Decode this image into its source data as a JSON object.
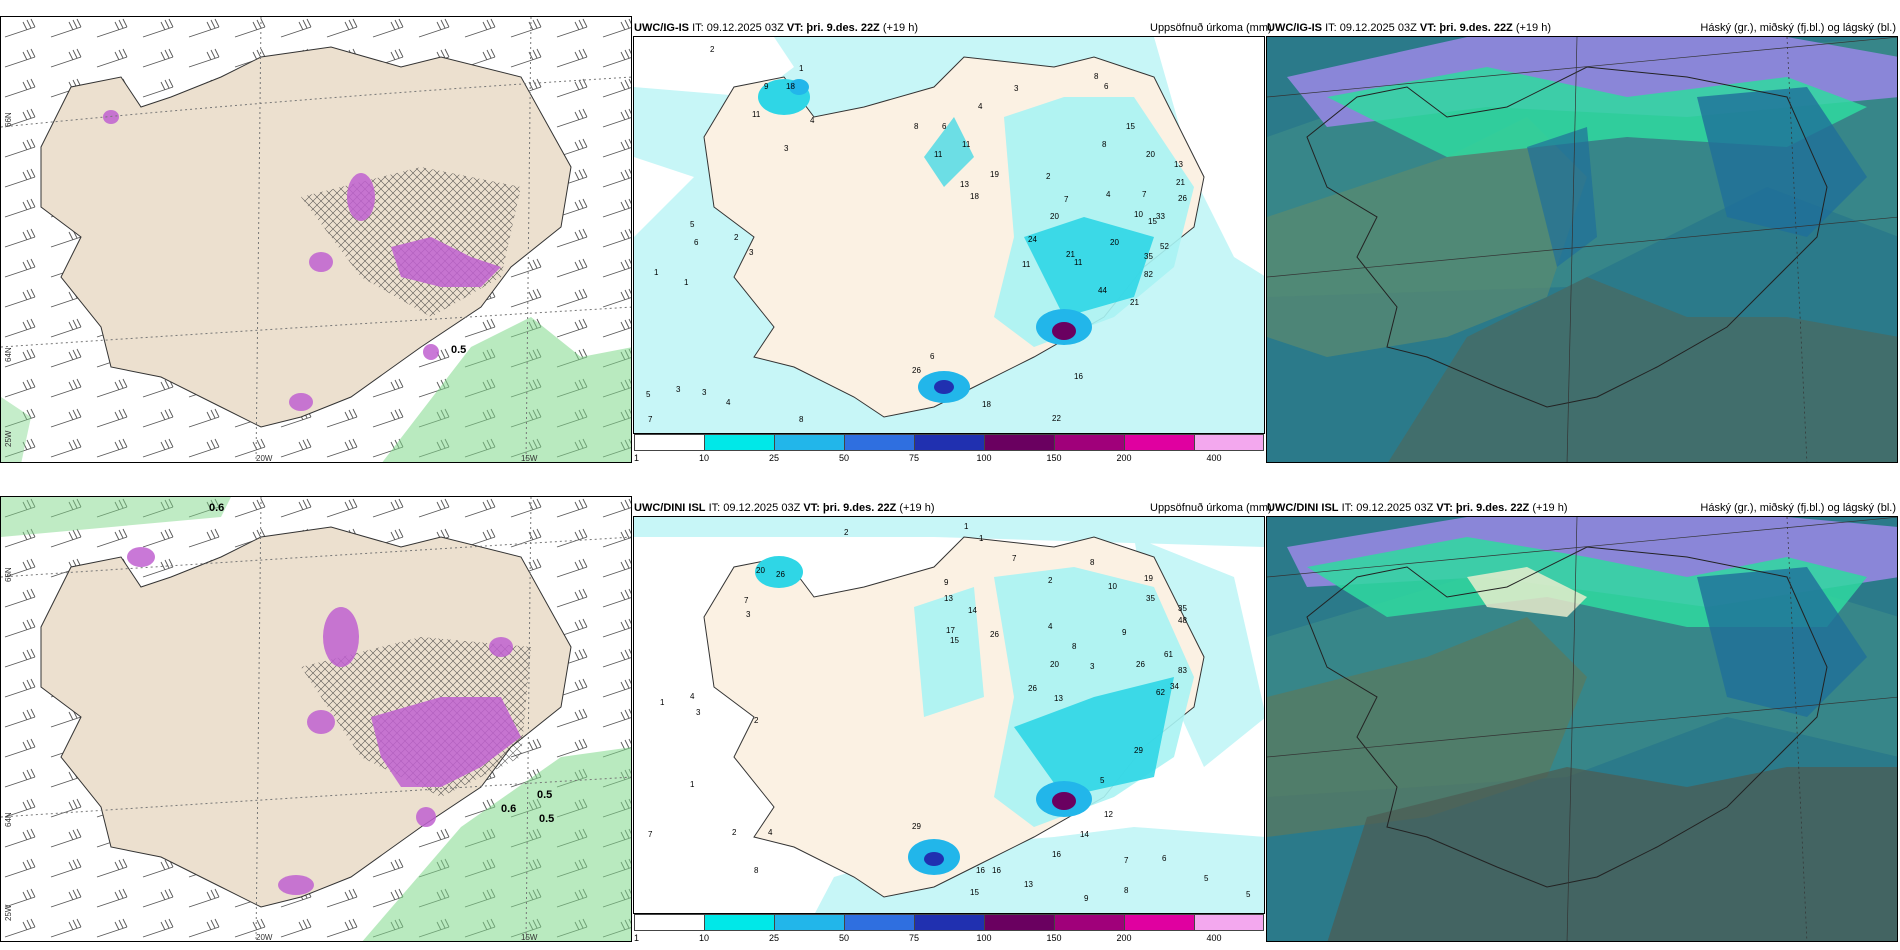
{
  "rows": [
    {
      "model": "UWC/IG-IS",
      "run_prefix": "IT: 09.12.2025 03Z",
      "vt_label": "VT: þri. 9.des. 22Z",
      "lead": "(+19 h)",
      "precip_label": "Uppsöfnuð úrkoma (mm)",
      "cloud_label": "Háský (gr.), miðský (fj.bl.) og lágský (bl.)"
    },
    {
      "model": "UWC/DINI ISL",
      "run_prefix": "IT: 09.12.2025 03Z",
      "vt_label": "VT: þri. 9.des. 22Z",
      "lead": "(+19 h)",
      "precip_label": "Uppsöfnuð úrkoma (mm)",
      "cloud_label": "Háský (gr.), miðský (fj.bl.) og lágský (bl.)"
    }
  ],
  "row1_cloud_model": "UWC/IG-IS",
  "legend": {
    "ticks": [
      "1",
      "10",
      "25",
      "50",
      "75",
      "100",
      "150",
      "200",
      "400"
    ],
    "colors": [
      "#ffffff",
      "#00e8e8",
      "#22b6ea",
      "#2f6fe0",
      "#2030b0",
      "#6a0060",
      "#a0007a",
      "#e000a0",
      "#f3a8ee"
    ]
  },
  "axis_labels": {
    "lon_20": "20W",
    "lon_15": "15W",
    "lat_66": "66N",
    "lat_64": "64N",
    "lon_25": "25W"
  },
  "row1_wind_labels": [
    "0.5"
  ],
  "row2_wind_labels": [
    "0.6",
    "0.5",
    "0.5",
    "0.6"
  ],
  "row1_precip_values": [
    "2",
    "9",
    "18",
    "11",
    "4",
    "3",
    "1",
    "5",
    "6",
    "2",
    "3",
    "1",
    "1",
    "5",
    "3",
    "3",
    "4",
    "8",
    "26",
    "6",
    "18",
    "22",
    "16",
    "7",
    "8",
    "6",
    "11",
    "4",
    "3",
    "11",
    "13",
    "18",
    "19",
    "2",
    "7",
    "20",
    "24",
    "11",
    "11",
    "21",
    "8",
    "6",
    "15",
    "8",
    "4",
    "7",
    "20",
    "10",
    "15",
    "13",
    "21",
    "26",
    "33",
    "20",
    "35",
    "52",
    "82",
    "44",
    "21"
  ],
  "row2_precip_values": [
    "2",
    "1",
    "1",
    "20",
    "26",
    "7",
    "3",
    "1",
    "4",
    "3",
    "2",
    "1",
    "8",
    "7",
    "2",
    "4",
    "29",
    "16",
    "16",
    "15",
    "13",
    "9",
    "8",
    "7",
    "6",
    "5",
    "5",
    "12",
    "14",
    "16",
    "9",
    "13",
    "14",
    "17",
    "15",
    "26",
    "7",
    "8",
    "2",
    "4",
    "20",
    "8",
    "9",
    "3",
    "26",
    "13",
    "10",
    "19",
    "35",
    "35",
    "48",
    "26",
    "61",
    "83",
    "62",
    "34",
    "29",
    "5"
  ],
  "colors": {
    "land": "#ece0cf",
    "sea_precip_base": "#c7f6f7",
    "cloud_low": "#2b7a8a",
    "cloud_high": "#8a86d8",
    "cloud_mid": "#2fd9a0",
    "wind_green": "#7fd88a",
    "precip_purple": "#c060d0"
  }
}
